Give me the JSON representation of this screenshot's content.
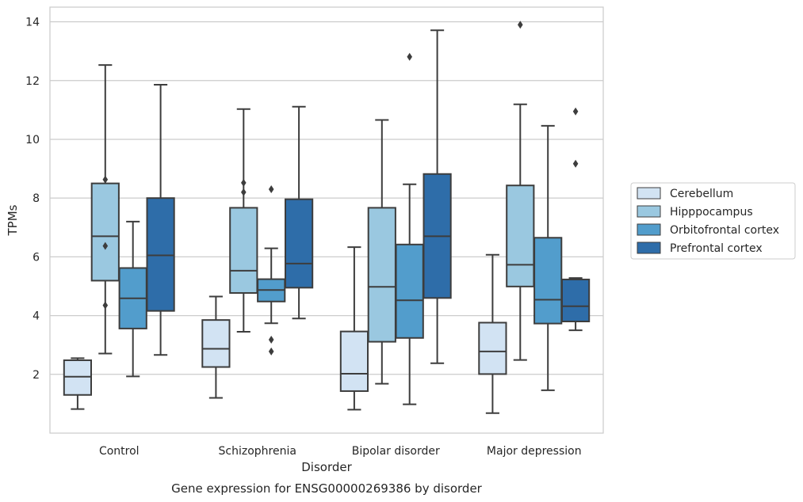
{
  "chart_data": {
    "type": "box",
    "title": "",
    "caption": "Gene expression for ENSG00000269386 by disorder",
    "xlabel": "Disorder",
    "ylabel": "TPMs",
    "ylim": [
      0,
      14.5
    ],
    "yticks": [
      2,
      4,
      6,
      8,
      10,
      12,
      14
    ],
    "grid": "horizontal",
    "legend_position": "right",
    "categories": [
      "Control",
      "Schizophrenia",
      "Bipolar disorder",
      "Major depression"
    ],
    "series": [
      {
        "name": "Cerebellum",
        "color": "#d2e3f3",
        "boxes": [
          {
            "whisker_low": 0.82,
            "q1": 1.3,
            "median": 1.92,
            "q3": 2.48,
            "whisker_high": 2.55,
            "outliers": []
          },
          {
            "whisker_low": 1.2,
            "q1": 2.25,
            "median": 2.87,
            "q3": 3.85,
            "whisker_high": 4.65,
            "outliers": []
          },
          {
            "whisker_low": 0.8,
            "q1": 1.43,
            "median": 2.02,
            "q3": 3.46,
            "whisker_high": 6.33,
            "outliers": []
          },
          {
            "whisker_low": 0.68,
            "q1": 2.01,
            "median": 2.78,
            "q3": 3.76,
            "whisker_high": 6.07,
            "outliers": []
          }
        ]
      },
      {
        "name": "Hipppocampus",
        "color": "#9ac8e0",
        "boxes": [
          {
            "whisker_low": 2.71,
            "q1": 5.19,
            "median": 6.7,
            "q3": 8.5,
            "whisker_high": 12.53,
            "outliers": [
              8.63,
              6.37,
              4.35
            ]
          },
          {
            "whisker_low": 3.45,
            "q1": 4.77,
            "median": 5.53,
            "q3": 7.67,
            "whisker_high": 11.03,
            "outliers": [
              8.52,
              8.2
            ]
          },
          {
            "whisker_low": 1.68,
            "q1": 3.11,
            "median": 4.98,
            "q3": 7.67,
            "whisker_high": 10.66,
            "outliers": []
          },
          {
            "whisker_low": 2.49,
            "q1": 4.99,
            "median": 5.73,
            "q3": 8.43,
            "whisker_high": 11.19,
            "outliers": [
              13.9
            ]
          }
        ]
      },
      {
        "name": "Orbitofrontal cortex",
        "color": "#529dcc",
        "boxes": [
          {
            "whisker_low": 1.93,
            "q1": 3.56,
            "median": 4.59,
            "q3": 5.62,
            "whisker_high": 7.2,
            "outliers": []
          },
          {
            "whisker_low": 3.74,
            "q1": 4.48,
            "median": 4.87,
            "q3": 5.24,
            "whisker_high": 6.29,
            "outliers": [
              8.3,
              3.18,
              2.78
            ]
          },
          {
            "whisker_low": 0.98,
            "q1": 3.24,
            "median": 4.52,
            "q3": 6.42,
            "whisker_high": 8.47,
            "outliers": [
              12.81
            ]
          },
          {
            "whisker_low": 1.46,
            "q1": 3.73,
            "median": 4.54,
            "q3": 6.65,
            "whisker_high": 10.46,
            "outliers": []
          }
        ]
      },
      {
        "name": "Prefrontal cortex",
        "color": "#2e6da9",
        "boxes": [
          {
            "whisker_low": 2.66,
            "q1": 4.16,
            "median": 6.05,
            "q3": 8.0,
            "whisker_high": 11.86,
            "outliers": []
          },
          {
            "whisker_low": 3.9,
            "q1": 4.95,
            "median": 5.77,
            "q3": 7.96,
            "whisker_high": 11.11,
            "outliers": []
          },
          {
            "whisker_low": 2.38,
            "q1": 4.6,
            "median": 6.7,
            "q3": 8.82,
            "whisker_high": 13.71,
            "outliers": []
          },
          {
            "whisker_low": 3.5,
            "q1": 3.8,
            "median": 4.32,
            "q3": 5.23,
            "whisker_high": 5.28,
            "outliers": [
              10.95,
              9.17
            ]
          }
        ]
      }
    ]
  }
}
